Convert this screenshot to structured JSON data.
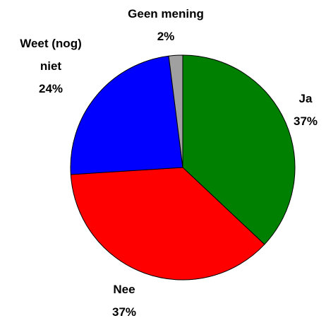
{
  "chart_data": {
    "type": "pie",
    "categories": [
      "Ja",
      "Nee",
      "Weet (nog) niet",
      "Geen mening"
    ],
    "values": [
      37,
      37,
      24,
      2
    ],
    "value_labels": [
      "37%",
      "37%",
      "24%",
      "2%"
    ],
    "colors": [
      "#008000",
      "#ff0000",
      "#0000ff",
      "#a0a0a0"
    ]
  }
}
